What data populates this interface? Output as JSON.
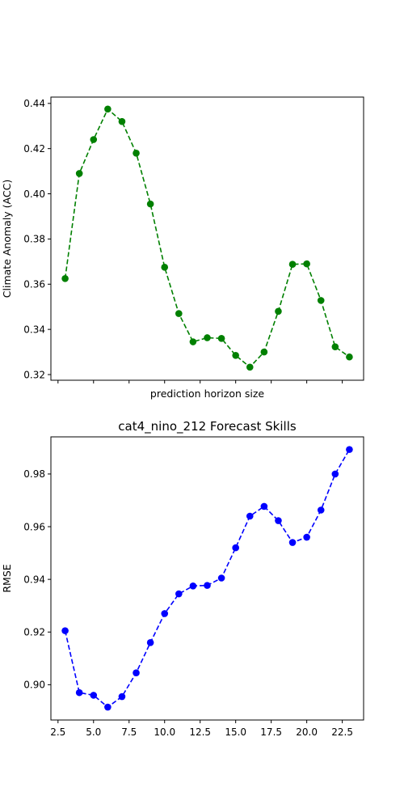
{
  "chart_data": [
    {
      "type": "line",
      "title": "",
      "xlabel": "prediction horizon size",
      "ylabel": "Climate Anomaly (ACC)",
      "x": [
        3,
        4,
        5,
        6,
        7,
        8,
        9,
        10,
        11,
        12,
        13,
        14,
        15,
        16,
        17,
        18,
        19,
        20,
        21,
        22,
        23
      ],
      "series": [
        {
          "values": [
            0.3625,
            0.409,
            0.424,
            0.4375,
            0.432,
            0.418,
            0.3955,
            0.3675,
            0.347,
            0.3345,
            0.3363,
            0.336,
            0.3285,
            0.3233,
            0.33,
            0.348,
            0.3688,
            0.369,
            0.3528,
            0.3323,
            0.3278
          ],
          "color": "#008000",
          "line_style": "dashed",
          "marker": "circle"
        }
      ],
      "xlim": [
        2.0,
        24.0
      ],
      "ylim": [
        0.3175,
        0.4428
      ],
      "yticks": [
        0.32,
        0.34,
        0.36,
        0.38,
        0.4,
        0.42,
        0.44
      ],
      "yticklabels": [
        "0.32",
        "0.34",
        "0.36",
        "0.38",
        "0.40",
        "0.42",
        "0.44"
      ],
      "xticks": [
        2.5,
        5.0,
        7.5,
        10.0,
        12.5,
        15.0,
        17.5,
        20.0,
        22.5
      ],
      "xticklabels_visible": false,
      "grid": false,
      "legend": "none"
    },
    {
      "type": "line",
      "title": "cat4_nino_212 Forecast Skills",
      "xlabel": "",
      "ylabel": "RMSE",
      "x": [
        3,
        4,
        5,
        6,
        7,
        8,
        9,
        10,
        11,
        12,
        13,
        14,
        15,
        16,
        17,
        18,
        19,
        20,
        21,
        22,
        23
      ],
      "series": [
        {
          "values": [
            0.9205,
            0.897,
            0.896,
            0.8915,
            0.8955,
            0.9045,
            0.916,
            0.927,
            0.9345,
            0.9375,
            0.9377,
            0.9405,
            0.952,
            0.964,
            0.9677,
            0.9623,
            0.954,
            0.956,
            0.9663,
            0.98,
            0.9893
          ],
          "color": "#0000ff",
          "line_style": "dashed",
          "marker": "circle"
        }
      ],
      "xlim": [
        2.0,
        24.0
      ],
      "ylim": [
        0.8866,
        0.9941
      ],
      "yticks": [
        0.9,
        0.92,
        0.94,
        0.96,
        0.98
      ],
      "yticklabels": [
        "0.90",
        "0.92",
        "0.94",
        "0.96",
        "0.98"
      ],
      "xticks": [
        2.5,
        5.0,
        7.5,
        10.0,
        12.5,
        15.0,
        17.5,
        20.0,
        22.5
      ],
      "xticklabels": [
        "2.5",
        "5.0",
        "7.5",
        "10.0",
        "12.5",
        "15.0",
        "17.5",
        "20.0",
        "22.5"
      ],
      "grid": false,
      "legend": "none"
    }
  ]
}
